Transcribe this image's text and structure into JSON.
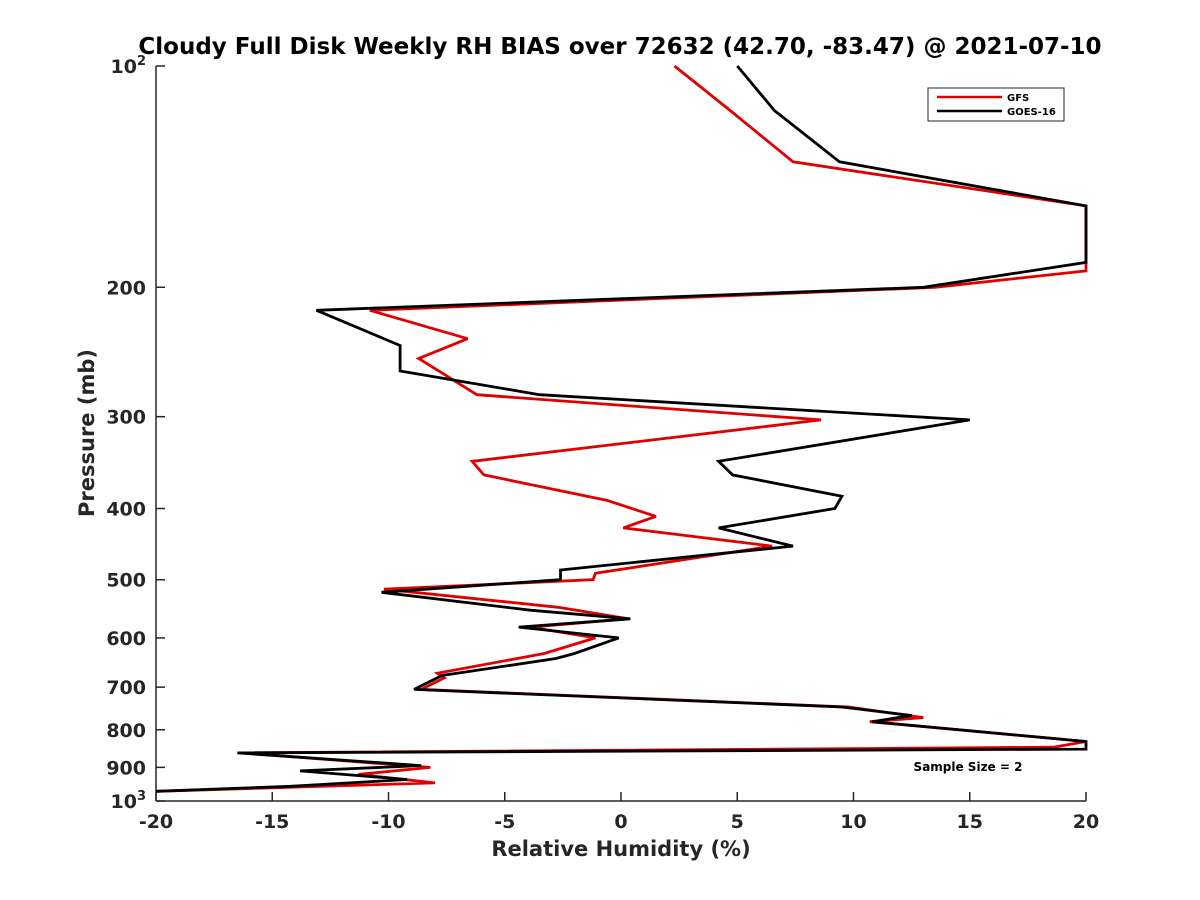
{
  "chart_data": {
    "type": "line",
    "title": "Cloudy Full Disk Weekly RH BIAS over 72632 (42.70, -83.47) @ 2021-07-10",
    "xlabel": "Relative Humidity (%)",
    "ylabel": "Pressure (mb)",
    "xlim": [
      -20,
      20
    ],
    "ylim": [
      100,
      1000
    ],
    "yscale": "log",
    "yreversed": true,
    "grid": false,
    "legend_position": "top-right",
    "xticks": [
      {
        "value": -20,
        "label": "-20"
      },
      {
        "value": -15,
        "label": "-15"
      },
      {
        "value": -10,
        "label": "-10"
      },
      {
        "value": -5,
        "label": "-5"
      },
      {
        "value": 0,
        "label": "0"
      },
      {
        "value": 5,
        "label": "5"
      },
      {
        "value": 10,
        "label": "10"
      },
      {
        "value": 15,
        "label": "15"
      },
      {
        "value": 20,
        "label": "20"
      }
    ],
    "yticks": [
      {
        "value": 100,
        "base": "10",
        "exp": "2"
      },
      {
        "value": 200,
        "label": "200"
      },
      {
        "value": 300,
        "label": "300"
      },
      {
        "value": 400,
        "label": "400"
      },
      {
        "value": 500,
        "label": "500"
      },
      {
        "value": 600,
        "label": "600"
      },
      {
        "value": 700,
        "label": "700"
      },
      {
        "value": 800,
        "label": "800"
      },
      {
        "value": 900,
        "label": "900"
      },
      {
        "value": 1000,
        "base": "10",
        "exp": "3"
      }
    ],
    "series": [
      {
        "name": "GFS",
        "color": "#e00000",
        "points": [
          [
            2.3,
            100
          ],
          [
            4.7,
            115
          ],
          [
            7.4,
            135
          ],
          [
            20,
            155
          ],
          [
            20,
            190
          ],
          [
            13.5,
            200
          ],
          [
            -10.8,
            215
          ],
          [
            -6.6,
            235
          ],
          [
            -8.7,
            250
          ],
          [
            -6.2,
            280
          ],
          [
            8.6,
            303
          ],
          [
            -6.4,
            345
          ],
          [
            -5.9,
            360
          ],
          [
            -0.6,
            390
          ],
          [
            1.5,
            410
          ],
          [
            0.1,
            425
          ],
          [
            6.5,
            450
          ],
          [
            -1.1,
            490
          ],
          [
            -1.2,
            500
          ],
          [
            -10.2,
            515
          ],
          [
            -2.7,
            545
          ],
          [
            0.3,
            565
          ],
          [
            -3.9,
            580
          ],
          [
            -1.1,
            600
          ],
          [
            -3.3,
            630
          ],
          [
            -7.9,
            670
          ],
          [
            -7.6,
            680
          ],
          [
            -8.6,
            705
          ],
          [
            9.8,
            745
          ],
          [
            13.0,
            770
          ],
          [
            10.7,
            780
          ],
          [
            20,
            830
          ],
          [
            18.6,
            845
          ],
          [
            -16.3,
            860
          ],
          [
            -8.2,
            900
          ],
          [
            -11.3,
            920
          ],
          [
            -8.0,
            945
          ],
          [
            -20,
            970
          ]
        ]
      },
      {
        "name": "GOES-16",
        "color": "#000000",
        "points": [
          [
            5.0,
            100
          ],
          [
            6.6,
            115
          ],
          [
            9.4,
            135
          ],
          [
            20,
            155
          ],
          [
            20,
            185
          ],
          [
            13.0,
            200
          ],
          [
            -13.1,
            215
          ],
          [
            -9.5,
            240
          ],
          [
            -9.5,
            260
          ],
          [
            -3.5,
            280
          ],
          [
            15.0,
            303
          ],
          [
            4.2,
            345
          ],
          [
            4.8,
            360
          ],
          [
            9.5,
            385
          ],
          [
            9.2,
            400
          ],
          [
            4.2,
            425
          ],
          [
            7.4,
            450
          ],
          [
            -2.6,
            485
          ],
          [
            -2.6,
            500
          ],
          [
            -10.3,
            520
          ],
          [
            -3.9,
            550
          ],
          [
            0.4,
            565
          ],
          [
            -4.4,
            580
          ],
          [
            -0.1,
            600
          ],
          [
            -2.0,
            630
          ],
          [
            -2.8,
            640
          ],
          [
            -7.7,
            675
          ],
          [
            -8.9,
            705
          ],
          [
            9.5,
            745
          ],
          [
            12.5,
            765
          ],
          [
            10.8,
            780
          ],
          [
            20,
            830
          ],
          [
            20,
            850
          ],
          [
            -16.5,
            860
          ],
          [
            -8.6,
            895
          ],
          [
            -13.8,
            910
          ],
          [
            -9.2,
            935
          ],
          [
            -14.2,
            955
          ],
          [
            -20,
            970
          ]
        ]
      }
    ],
    "annotations": [
      {
        "text": "Sample Size = 2"
      }
    ]
  }
}
